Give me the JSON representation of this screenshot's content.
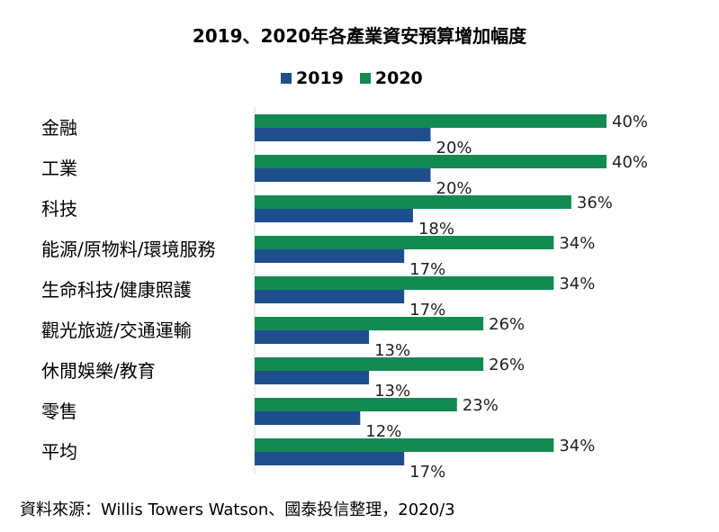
{
  "chart_data": {
    "type": "bar",
    "orientation": "horizontal",
    "title": "2019、2020年各產業資安預算增加幅度",
    "categories": [
      "金融",
      "工業",
      "科技",
      "能源/原物料/環境服務",
      "生命科技/健康照護",
      "觀光旅遊/交通運輸",
      "休閒娛樂/教育",
      "零售",
      "平均"
    ],
    "series": [
      {
        "name": "2020",
        "color": "#138a52",
        "values": [
          40,
          40,
          36,
          34,
          34,
          26,
          26,
          23,
          34
        ],
        "labels": [
          "40%",
          "40%",
          "36%",
          "34%",
          "34%",
          "26%",
          "26%",
          "23%",
          "34%"
        ]
      },
      {
        "name": "2019",
        "color": "#1f4e8c",
        "values": [
          20,
          20,
          18,
          17,
          17,
          13,
          13,
          12,
          17
        ],
        "labels": [
          "20%",
          "20%",
          "18%",
          "17%",
          "17%",
          "13%",
          "13%",
          "12%",
          "17%"
        ]
      }
    ],
    "legend": [
      {
        "name": "2019",
        "color": "#1f4e8c"
      },
      {
        "name": "2020",
        "color": "#138a52"
      }
    ],
    "xlim": [
      0,
      40
    ],
    "grid": false,
    "legend_position": "top-center"
  },
  "source": "資料來源：Willis Towers Watson、國泰投信整理，2020/3"
}
